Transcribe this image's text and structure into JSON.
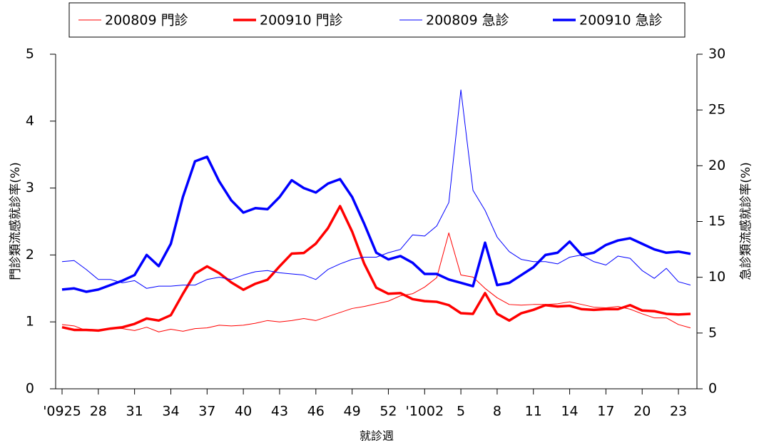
{
  "chart_data": {
    "type": "line",
    "x_label": "就診週",
    "y_label": "門診類流感就診率(%)",
    "y2_label": "急診類流感就診率(%)",
    "y_label_color": "#ff0000",
    "y2_label_color": "#0000ff",
    "categories": [
      "'0925",
      null,
      null,
      "28",
      null,
      null,
      "31",
      null,
      null,
      "34",
      null,
      null,
      "37",
      null,
      null,
      "40",
      null,
      null,
      "43",
      null,
      null,
      "46",
      null,
      null,
      "49",
      null,
      null,
      "52",
      null,
      null,
      "'1002",
      null,
      null,
      "5",
      null,
      null,
      "8",
      null,
      null,
      "11",
      null,
      null,
      "14",
      null,
      null,
      "17",
      null,
      null,
      "20",
      null,
      null,
      "23",
      null
    ],
    "ylim": [
      0,
      5
    ],
    "yticks": [
      0,
      1,
      2,
      3,
      4,
      5
    ],
    "y2lim": [
      0,
      30
    ],
    "y2ticks": [
      0,
      5,
      10,
      15,
      20,
      25,
      30
    ],
    "legend": "top",
    "series": [
      {
        "name": "200809 門診",
        "color": "#ff0000",
        "line_width": 1,
        "values": [
          0.96,
          0.94,
          0.87,
          0.88,
          0.9,
          0.9,
          0.87,
          0.92,
          0.85,
          0.89,
          0.86,
          0.9,
          0.91,
          0.95,
          0.94,
          0.95,
          0.98,
          1.02,
          1.0,
          1.02,
          1.05,
          1.02,
          1.08,
          1.14,
          1.2,
          1.23,
          1.27,
          1.31,
          1.39,
          1.42,
          1.52,
          1.66,
          2.33,
          1.7,
          1.67,
          1.5,
          1.36,
          1.26,
          1.25,
          1.26,
          1.26,
          1.27,
          1.3,
          1.26,
          1.22,
          1.21,
          1.23,
          1.19,
          1.12,
          1.06,
          1.06,
          0.96,
          0.91
        ]
      },
      {
        "name": "200910 門診",
        "color": "#ff0000",
        "line_width": 3.5,
        "values": [
          0.92,
          0.88,
          0.88,
          0.87,
          0.9,
          0.92,
          0.97,
          1.05,
          1.02,
          1.1,
          1.42,
          1.72,
          1.83,
          1.73,
          1.59,
          1.48,
          1.57,
          1.63,
          1.83,
          2.02,
          2.03,
          2.17,
          2.4,
          2.73,
          2.35,
          1.87,
          1.51,
          1.42,
          1.43,
          1.34,
          1.31,
          1.3,
          1.25,
          1.13,
          1.12,
          1.43,
          1.12,
          1.02,
          1.13,
          1.18,
          1.25,
          1.23,
          1.24,
          1.19,
          1.18,
          1.19,
          1.19,
          1.25,
          1.17,
          1.16,
          1.12,
          1.11,
          1.12
        ]
      },
      {
        "name": "200809 急診",
        "color": "#0000ff",
        "line_width": 1,
        "axis": "y2",
        "values": [
          11.4,
          11.5,
          10.7,
          9.8,
          9.8,
          9.5,
          9.7,
          9.0,
          9.2,
          9.2,
          9.3,
          9.3,
          9.8,
          10.0,
          9.8,
          10.2,
          10.5,
          10.6,
          10.4,
          10.3,
          10.2,
          9.8,
          10.7,
          11.2,
          11.6,
          11.8,
          11.8,
          12.2,
          12.5,
          13.8,
          13.7,
          14.6,
          16.7,
          26.8,
          17.8,
          16.0,
          13.6,
          12.3,
          11.6,
          11.4,
          11.4,
          11.2,
          11.8,
          12.0,
          11.4,
          11.1,
          11.9,
          11.7,
          10.6,
          9.9,
          10.8,
          9.6,
          9.3
        ]
      },
      {
        "name": "200910 急診",
        "color": "#0000ff",
        "line_width": 3.5,
        "axis": "y2",
        "values": [
          8.9,
          9.0,
          8.7,
          8.9,
          9.3,
          9.7,
          10.2,
          12.0,
          11.0,
          13.0,
          17.2,
          20.4,
          20.8,
          18.6,
          16.9,
          15.8,
          16.2,
          16.1,
          17.2,
          18.7,
          18.0,
          17.6,
          18.4,
          18.8,
          17.2,
          14.8,
          12.2,
          11.6,
          11.9,
          11.3,
          10.3,
          10.3,
          9.8,
          9.5,
          9.2,
          13.1,
          9.3,
          9.5,
          10.2,
          10.9,
          12.0,
          12.2,
          13.2,
          12.0,
          12.2,
          12.9,
          13.3,
          13.5,
          13.0,
          12.5,
          12.2,
          12.3,
          12.1
        ]
      }
    ]
  }
}
